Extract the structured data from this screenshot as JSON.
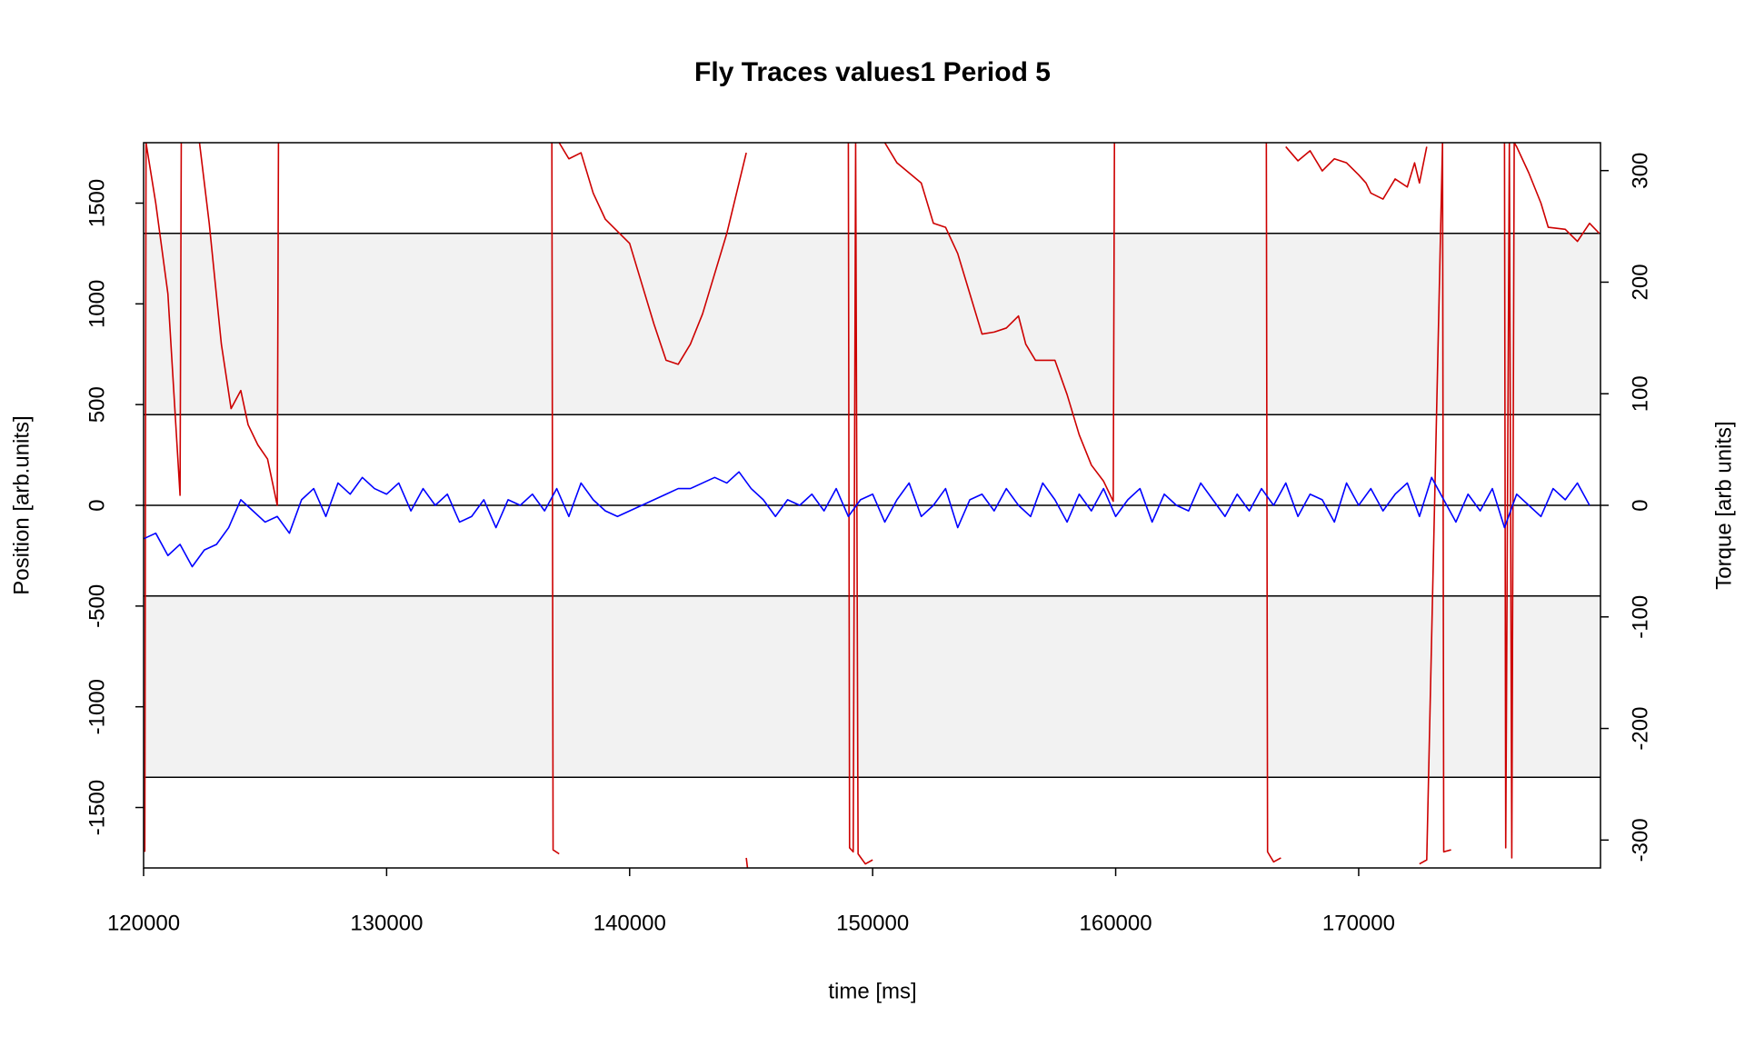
{
  "chart_data": {
    "type": "line",
    "title": "Fly Traces values1 Period 5",
    "x_label": "time [ms]",
    "y_label": "Position [arb.units]",
    "y2_label": "Torque [arb units]",
    "xlim": [
      120000,
      179950
    ],
    "ylim": [
      -1800,
      1800
    ],
    "y2lim": [
      -325,
      325
    ],
    "xticks": [
      120000,
      130000,
      140000,
      150000,
      160000,
      170000
    ],
    "yticks": [
      -1500,
      -1000,
      -500,
      0,
      500,
      1000,
      1500
    ],
    "y2ticks": [
      -300,
      -200,
      -100,
      0,
      100,
      200,
      300
    ],
    "bands": [
      [
        450,
        1350
      ],
      [
        -1350,
        -450
      ]
    ],
    "band_color": "#f2f2f2",
    "hlines": [
      0,
      450,
      -450,
      1350,
      -1350
    ],
    "series": [
      {
        "color": "#cd0000",
        "x": [
          120050,
          120100,
          120500,
          121000,
          121500,
          121550,
          null,
          122300,
          122700,
          123200,
          123600,
          124000,
          124300,
          124700,
          125100,
          125500,
          125550,
          null,
          136800,
          136850,
          137100,
          null,
          137100,
          137500,
          138000,
          138500,
          139000,
          140000,
          140500,
          141000,
          141500,
          142000,
          142500,
          143000,
          143500,
          144000,
          144500,
          144800,
          null,
          144800,
          144850,
          null,
          149000,
          149050,
          149200,
          149300,
          149400,
          149700,
          150000,
          null,
          150500,
          151000,
          151500,
          152000,
          152500,
          153000,
          153500,
          154000,
          154500,
          155000,
          155500,
          156000,
          156300,
          156700,
          157500,
          158000,
          158500,
          159000,
          159500,
          159900,
          159950,
          null,
          166200,
          166250,
          166500,
          166800,
          null,
          167000,
          167500,
          168000,
          168500,
          169000,
          169500,
          170000,
          170300,
          170500,
          171000,
          171500,
          172000,
          172300,
          172500,
          172800,
          null,
          172500,
          172800,
          173450,
          173500,
          173800,
          null,
          176000,
          176050,
          176200,
          176300,
          176400,
          176500,
          177000,
          177500,
          177800,
          178500,
          179000,
          179500,
          179900
        ],
        "values": [
          -1720,
          1800,
          1500,
          1050,
          50,
          1800,
          null,
          1800,
          1400,
          800,
          480,
          570,
          400,
          300,
          230,
          0,
          1800,
          null,
          1800,
          -1710,
          -1730,
          null,
          1800,
          1720,
          1750,
          1550,
          1420,
          1300,
          1100,
          900,
          720,
          700,
          800,
          950,
          1150,
          1350,
          1600,
          1750,
          null,
          -1750,
          -1800,
          null,
          1800,
          -1700,
          -1720,
          1800,
          -1730,
          -1780,
          -1760,
          null,
          1800,
          1700,
          1650,
          1600,
          1400,
          1380,
          1250,
          1050,
          850,
          860,
          880,
          940,
          800,
          720,
          720,
          550,
          350,
          200,
          120,
          20,
          1800,
          null,
          1800,
          -1720,
          -1770,
          -1750,
          null,
          1780,
          1710,
          1760,
          1660,
          1720,
          1700,
          1640,
          1600,
          1550,
          1520,
          1620,
          1580,
          1700,
          1600,
          1780,
          null,
          -1780,
          -1760,
          1800,
          -1720,
          -1710,
          null,
          1800,
          -1700,
          1800,
          -1750,
          1800,
          1780,
          1650,
          1500,
          1380,
          1370,
          1310,
          1400,
          1350
        ]
      },
      {
        "color": "#0000ff",
        "axis": "y2",
        "x": [
          120000,
          120500,
          121000,
          121500,
          122000,
          122500,
          123000,
          123500,
          124000,
          124500,
          125000,
          125500,
          126000,
          126500,
          127000,
          127500,
          128000,
          128500,
          129000,
          129500,
          130000,
          130500,
          131000,
          131500,
          132000,
          132500,
          133000,
          133500,
          134000,
          134500,
          135000,
          135500,
          136000,
          136500,
          137000,
          137500,
          138000,
          138500,
          139000,
          139500,
          140000,
          140500,
          141000,
          141500,
          142000,
          142500,
          143000,
          143500,
          144000,
          144500,
          145000,
          145500,
          146000,
          146500,
          147000,
          147500,
          148000,
          148500,
          149000,
          149500,
          150000,
          150500,
          151000,
          151500,
          152000,
          152500,
          153000,
          153500,
          154000,
          154500,
          155000,
          155500,
          156000,
          156500,
          157000,
          157500,
          158000,
          158500,
          159000,
          159500,
          160000,
          160500,
          161000,
          161500,
          162000,
          162500,
          163000,
          163500,
          164000,
          164500,
          165000,
          165500,
          166000,
          166500,
          167000,
          167500,
          168000,
          168500,
          169000,
          169500,
          170000,
          170500,
          171000,
          171500,
          172000,
          172500,
          173000,
          173500,
          174000,
          174500,
          175000,
          175500,
          176000,
          176500,
          177000,
          177500,
          178000,
          178500,
          179000,
          179500
        ],
        "values": [
          -30,
          -25,
          -45,
          -35,
          -55,
          -40,
          -35,
          -20,
          5,
          -5,
          -15,
          -10,
          -25,
          5,
          15,
          -10,
          20,
          10,
          25,
          15,
          10,
          20,
          -5,
          15,
          0,
          10,
          -15,
          -10,
          5,
          -20,
          5,
          0,
          10,
          -5,
          15,
          -10,
          20,
          5,
          -5,
          -10,
          -5,
          0,
          5,
          10,
          15,
          15,
          20,
          25,
          20,
          30,
          15,
          5,
          -10,
          5,
          0,
          10,
          -5,
          15,
          -10,
          5,
          10,
          -15,
          5,
          20,
          -10,
          0,
          15,
          -20,
          5,
          10,
          -5,
          15,
          0,
          -10,
          20,
          5,
          -15,
          10,
          -5,
          15,
          -10,
          5,
          15,
          -15,
          10,
          0,
          -5,
          20,
          5,
          -10,
          10,
          -5,
          15,
          0,
          20,
          -10,
          10,
          5,
          -15,
          20,
          0,
          15,
          -5,
          10,
          20,
          -10,
          25,
          5,
          -15,
          10,
          -5,
          15,
          -20,
          10,
          0,
          -10,
          15,
          5,
          20,
          0
        ]
      }
    ]
  }
}
